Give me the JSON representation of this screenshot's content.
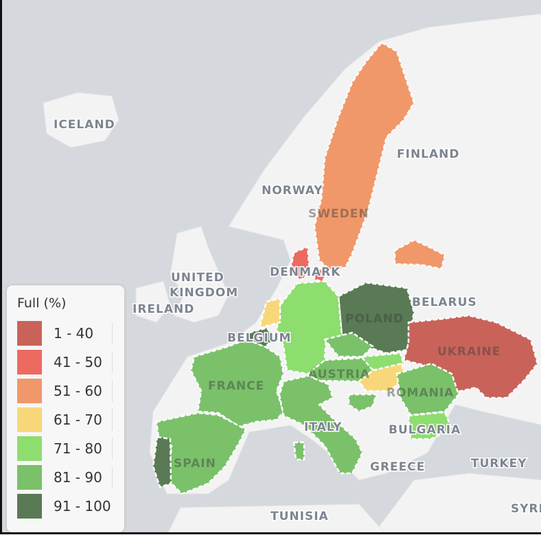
{
  "legend": {
    "title": "Full (%)",
    "items": [
      {
        "label": "1 - 40",
        "color": "#c9635a"
      },
      {
        "label": "41 - 50",
        "color": "#ec6a60"
      },
      {
        "label": "51 - 60",
        "color": "#f0986a"
      },
      {
        "label": "61 - 70",
        "color": "#f8d77a"
      },
      {
        "label": "71 - 80",
        "color": "#8ddd6f"
      },
      {
        "label": "81 - 90",
        "color": "#7ac16a"
      },
      {
        "label": "91 - 100",
        "color": "#597a54"
      }
    ]
  },
  "colors": {
    "sea": "#d5d8dc",
    "land": "#f3f3f3"
  },
  "countries": {
    "sweden": "51 - 60",
    "latvia": "51 - 60",
    "denmark": "41 - 50",
    "poland": "91 - 100",
    "belgium": "91 - 100",
    "portugal": "91 - 100",
    "ukraine": "1 - 40",
    "netherlands": "61 - 70",
    "hungary": "61 - 70",
    "germany": "71 - 80",
    "slovakia": "71 - 80",
    "bulgaria": "71 - 80",
    "france": "81 - 90",
    "spain": "81 - 90",
    "italy": "81 - 90",
    "czechia": "81 - 90",
    "austria": "81 - 90",
    "romania": "81 - 90",
    "croatia": "81 - 90"
  },
  "labels": {
    "iceland": "ICELAND",
    "norway": "NORWAY",
    "sweden": "SWEDEN",
    "finland": "FINLAND",
    "denmark": "DENMARK",
    "uk1": "UNITED",
    "uk2": "KINGDOM",
    "ireland": "IRELAND",
    "belgium": "BELGIUM",
    "poland": "POLAND",
    "belarus": "BELARUS",
    "ukraine": "UKRAINE",
    "france": "FRANCE",
    "austria": "AUSTRIA",
    "romania": "ROMANIA",
    "italy": "ITALY",
    "bulgaria": "BULGARIA",
    "spain": "SPAIN",
    "greece": "GREECE",
    "turkey": "TURKEY",
    "tunisia": "TUNISIA",
    "syria": "SYRI"
  }
}
